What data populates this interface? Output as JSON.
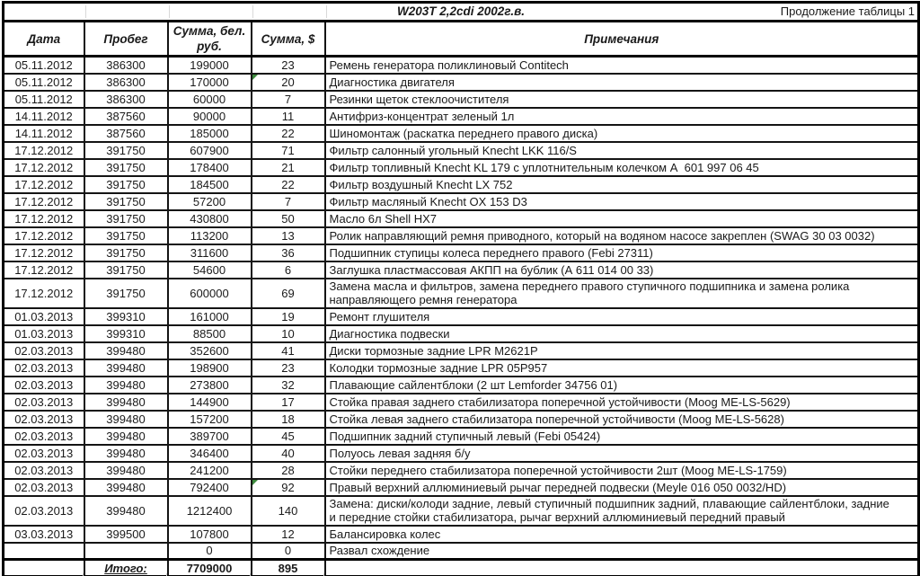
{
  "title": {
    "center": "W203T 2,2cdi 2002г.в.",
    "right": "Продолжение таблицы 1"
  },
  "columns": {
    "date": "Дата",
    "mileage": "Пробег",
    "byr": "Сумма, бел.\nруб.",
    "usd": "Сумма, $",
    "notes": "Примечания"
  },
  "colors": {
    "comment_flag": "#3d8a3d",
    "border": "#000000"
  },
  "rows": [
    {
      "date": "05.11.2012",
      "mileage": "386300",
      "byr": "199000",
      "usd": "23",
      "note": "Ремень генератора поликлиновый Contitech"
    },
    {
      "date": "05.11.2012",
      "mileage": "386300",
      "byr": "170000",
      "usd": "20",
      "note": "Диагностика двигателя",
      "marker": true
    },
    {
      "date": "05.11.2012",
      "mileage": "386300",
      "byr": "60000",
      "usd": "7",
      "note": "Резинки щеток стеклоочистителя"
    },
    {
      "date": "14.11.2012",
      "mileage": "387560",
      "byr": "90000",
      "usd": "11",
      "note": "Антифриз-концентрат зеленый 1л"
    },
    {
      "date": "14.11.2012",
      "mileage": "387560",
      "byr": "185000",
      "usd": "22",
      "note": "Шиномонтаж (раскатка переднего правого диска)"
    },
    {
      "date": "17.12.2012",
      "mileage": "391750",
      "byr": "607900",
      "usd": "71",
      "note": "Фильтр салонный угольный Knecht LKK 116/S"
    },
    {
      "date": "17.12.2012",
      "mileage": "391750",
      "byr": "178400",
      "usd": "21",
      "note": "Фильтр топливный Knecht KL 179 с уплотнительным колечком А  601 997 06 45"
    },
    {
      "date": "17.12.2012",
      "mileage": "391750",
      "byr": "184500",
      "usd": "22",
      "note": "Фильтр воздушный Knecht LX 752"
    },
    {
      "date": "17.12.2012",
      "mileage": "391750",
      "byr": "57200",
      "usd": "7",
      "note": "Фильтр масляный Knecht OX 153 D3"
    },
    {
      "date": "17.12.2012",
      "mileage": "391750",
      "byr": "430800",
      "usd": "50",
      "note": "Масло 6л Shell HX7"
    },
    {
      "date": "17.12.2012",
      "mileage": "391750",
      "byr": "113200",
      "usd": "13",
      "note": "Ролик направляющий ремня приводного, который на водяном насосе закреплен (SWAG 30 03 0032)"
    },
    {
      "date": "17.12.2012",
      "mileage": "391750",
      "byr": "311600",
      "usd": "36",
      "note": "Подшипник ступицы колеса переднего правого (Febi 27311)"
    },
    {
      "date": "17.12.2012",
      "mileage": "391750",
      "byr": "54600",
      "usd": "6",
      "note": "Заглушка пластмассовая АКПП на бублик (А 611 014 00 33)"
    },
    {
      "date": "17.12.2012",
      "mileage": "391750",
      "byr": "600000",
      "usd": "69",
      "note": "Замена масла и фильтров, замена переднего правого ступичного подшипника и замена ролика\nнаправляющего ремня генератора",
      "tall": true
    },
    {
      "date": "01.03.2013",
      "mileage": "399310",
      "byr": "161000",
      "usd": "19",
      "note": "Ремонт глушителя"
    },
    {
      "date": "01.03.2013",
      "mileage": "399310",
      "byr": "88500",
      "usd": "10",
      "note": "Диагностика подвески"
    },
    {
      "date": "02.03.2013",
      "mileage": "399480",
      "byr": "352600",
      "usd": "41",
      "note": "Диски тормозные задние LPR M2621P"
    },
    {
      "date": "02.03.2013",
      "mileage": "399480",
      "byr": "198900",
      "usd": "23",
      "note": "Колодки тормозные задние LPR 05P957"
    },
    {
      "date": "02.03.2013",
      "mileage": "399480",
      "byr": "273800",
      "usd": "32",
      "note": "Плавающие сайлентблоки (2 шт Lemforder 34756 01)"
    },
    {
      "date": "02.03.2013",
      "mileage": "399480",
      "byr": "144900",
      "usd": "17",
      "note": "Стойка правая заднего стабилизатора поперечной устойчивости (Moog ME-LS-5629)"
    },
    {
      "date": "02.03.2013",
      "mileage": "399480",
      "byr": "157200",
      "usd": "18",
      "note": "Стойка левая заднего стабилизатора поперечной устойчивости (Moog ME-LS-5628)"
    },
    {
      "date": "02.03.2013",
      "mileage": "399480",
      "byr": "389700",
      "usd": "45",
      "note": "Подшипник задний ступичный левый (Febi 05424)"
    },
    {
      "date": "02.03.2013",
      "mileage": "399480",
      "byr": "346400",
      "usd": "40",
      "note": "Полуось левая задняя б/у"
    },
    {
      "date": "02.03.2013",
      "mileage": "399480",
      "byr": "241200",
      "usd": "28",
      "note": "Стойки переднего стабилизатора поперечной устойчивости 2шт (Moog ME-LS-1759)"
    },
    {
      "date": "02.03.2013",
      "mileage": "399480",
      "byr": "792400",
      "usd": "92",
      "note": "Правый верхний аллюминиевый рычаг передней подвески (Meyle 016 050 0032/HD)",
      "marker": true
    },
    {
      "date": "02.03.2013",
      "mileage": "399480",
      "byr": "1212400",
      "usd": "140",
      "note": "Замена: диски/колоди задние, левый ступичный подшипник задний, плавающие сайлентблоки, задние\nи передние стойки стабилизатора, рычаг верхний аллюминиевый передний правый",
      "tall": true
    },
    {
      "date": "03.03.2013",
      "mileage": "399500",
      "byr": "107800",
      "usd": "12",
      "note": "Балансировка колес"
    },
    {
      "date": "",
      "mileage": "",
      "byr": "0",
      "usd": "0",
      "note": "Развал схождение"
    }
  ],
  "total": {
    "label": "Итого:",
    "byr": "7709000",
    "usd": "895"
  }
}
